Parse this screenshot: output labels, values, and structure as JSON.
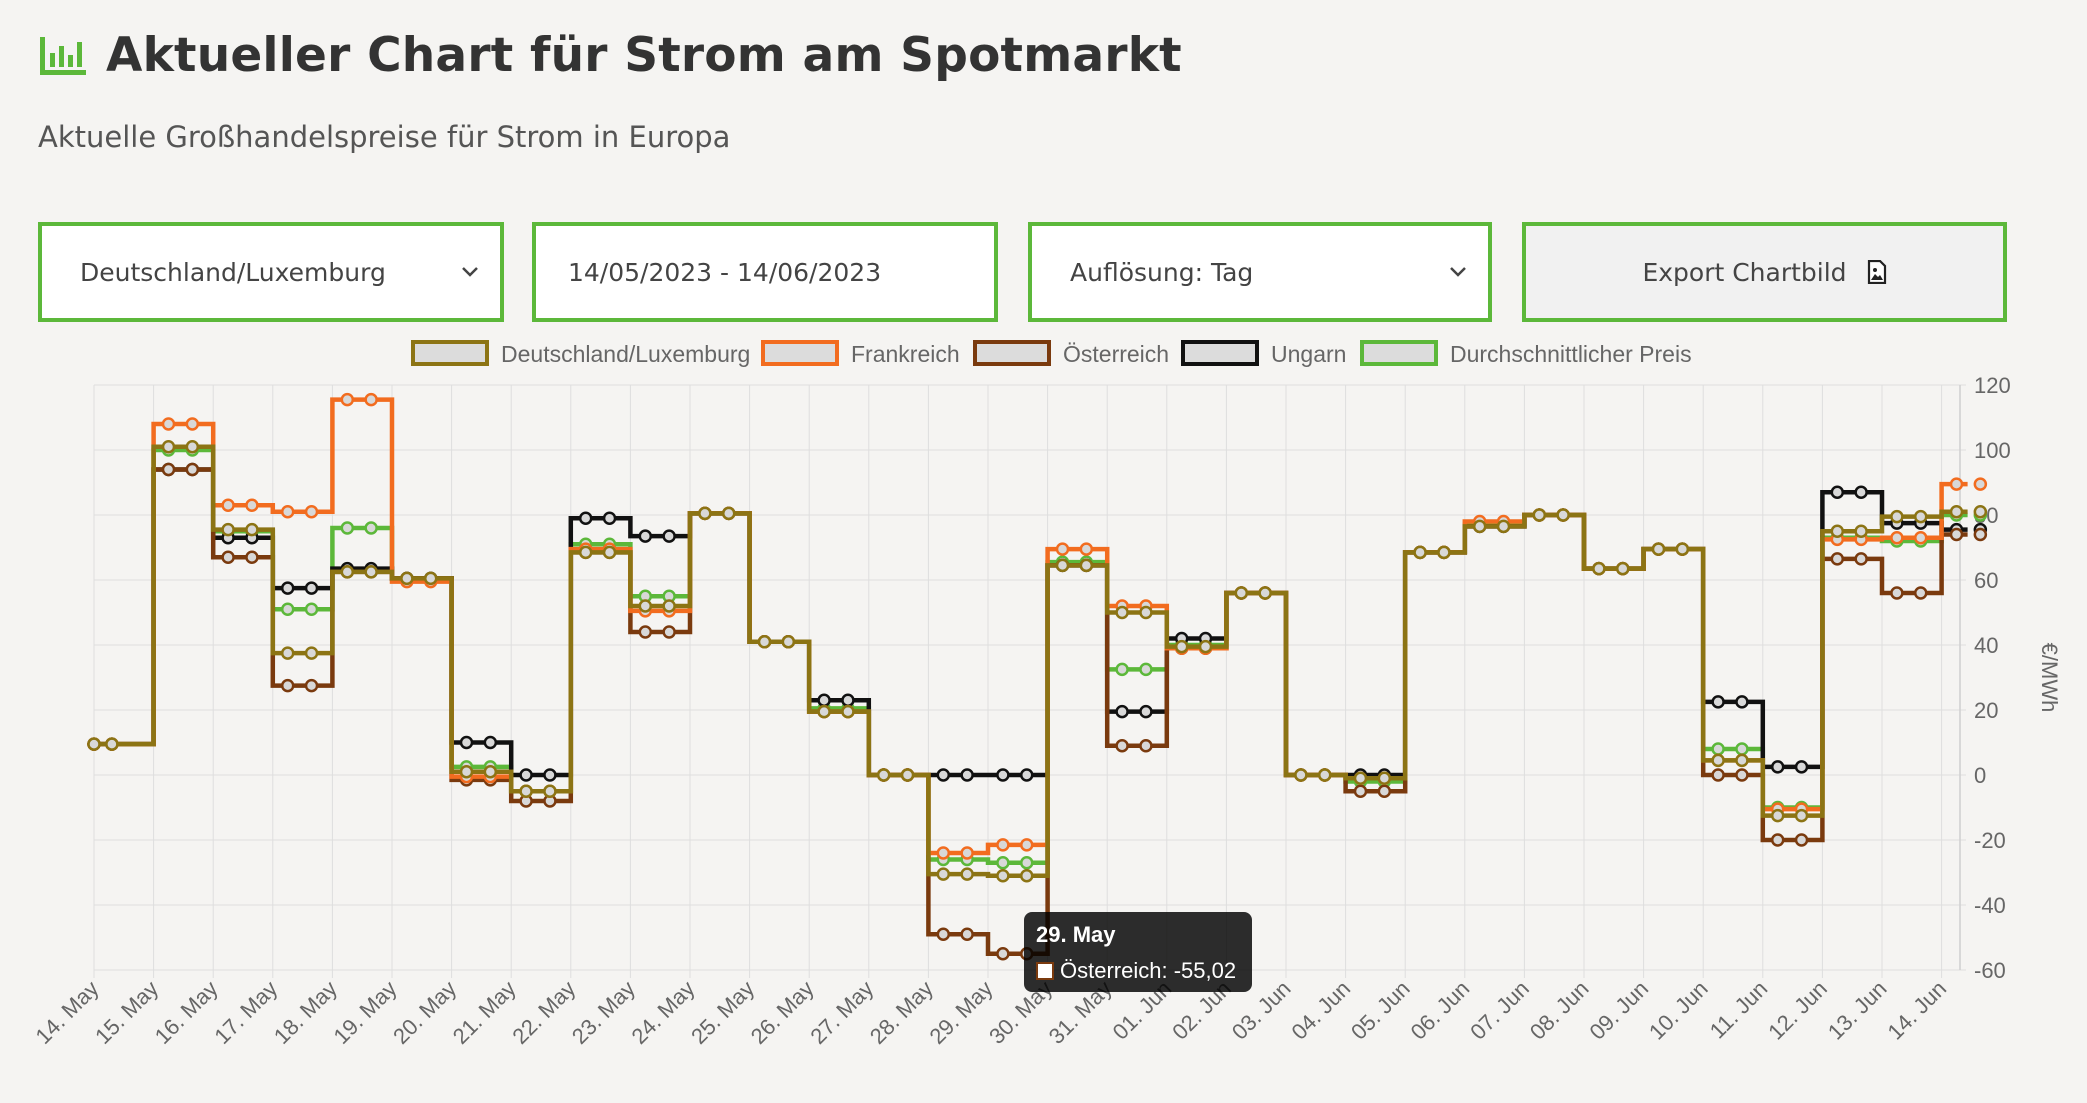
{
  "header": {
    "title": "Aktueller Chart für Strom am Spotmarkt",
    "subtitle": "Aktuelle Großhandelspreise für Strom in Europa",
    "logo_icon": "bar-chart-icon",
    "accent_color": "#5cb83a"
  },
  "controls": {
    "country": "Deutschland/Luxemburg",
    "date_range": "14/05/2023 - 14/06/2023",
    "resolution": "Auflösung: Tag",
    "export_label": "Export Chartbild",
    "export_icon": "image-file-icon"
  },
  "tooltip": {
    "title": "29. May",
    "label": "Österreich: -55,02"
  },
  "chart_data": {
    "type": "line",
    "step": true,
    "xlabel": "",
    "ylabel": "€/MWh",
    "ylim": [
      -60,
      120
    ],
    "yticks": [
      120,
      100,
      80,
      60,
      40,
      20,
      0,
      -20,
      -40,
      -60
    ],
    "y_axis_position": "right",
    "grid": true,
    "legend_position": "top",
    "categories": [
      "14. May",
      "15. May",
      "16. May",
      "17. May",
      "18. May",
      "19. May",
      "20. May",
      "21. May",
      "22. May",
      "23. May",
      "24. May",
      "25. May",
      "26. May",
      "27. May",
      "28. May",
      "29. May",
      "30. May",
      "31. May",
      "01. Jun",
      "02. Jun",
      "03. Jun",
      "04. Jun",
      "05. Jun",
      "06. Jun",
      "07. Jun",
      "08. Jun",
      "09. Jun",
      "10. Jun",
      "11. Jun",
      "12. Jun",
      "13. Jun",
      "14. Jun"
    ],
    "series": [
      {
        "name": "Deutschland/Luxemburg",
        "color": "#8c7414",
        "values": [
          9.5,
          101,
          75.5,
          37.5,
          62.5,
          60.5,
          1,
          -5,
          68.5,
          52,
          80.5,
          41,
          19.5,
          0,
          -30.5,
          -31,
          64.5,
          50,
          39.5,
          56,
          0,
          -1,
          68.5,
          76.5,
          80,
          63.5,
          69.5,
          4.5,
          -12.5,
          75,
          79.5,
          81
        ]
      },
      {
        "name": "Frankreich",
        "color": "#f26c1f",
        "values": [
          9.5,
          108,
          83,
          81,
          115.5,
          59.5,
          -0.5,
          -5,
          69.5,
          50.5,
          80.5,
          41,
          19.5,
          0,
          -24,
          -21.5,
          69.5,
          52,
          39,
          56,
          0,
          -1,
          68.5,
          78,
          80,
          63.5,
          69.5,
          4.5,
          -10.5,
          72.5,
          73,
          89.5
        ]
      },
      {
        "name": "Österreich",
        "color": "#7a3a0e",
        "values": [
          9.5,
          94,
          67,
          27.5,
          62.5,
          60.5,
          -1.5,
          -8,
          68.5,
          44,
          80.5,
          41,
          19.5,
          0,
          -49,
          -55,
          64.5,
          9,
          39,
          56,
          0,
          -5,
          68.5,
          76.5,
          80,
          63.5,
          69.5,
          0,
          -20,
          66.5,
          56,
          74
        ]
      },
      {
        "name": "Ungarn",
        "color": "#111111",
        "values": [
          9.5,
          94,
          73,
          57.5,
          63.5,
          60.5,
          10,
          0,
          79,
          73.5,
          80.5,
          41,
          23,
          0,
          0,
          0,
          64.5,
          19.5,
          42,
          56,
          0,
          0,
          68.5,
          76.5,
          80,
          63.5,
          69.5,
          22.5,
          2.5,
          87,
          77.5,
          75.5
        ]
      },
      {
        "name": "Durchschnittlicher Preis",
        "color": "#5cb83a",
        "values": [
          9.5,
          100,
          75,
          51,
          76,
          60.5,
          2.5,
          -5,
          71,
          55,
          80.5,
          41,
          20.5,
          0,
          -26,
          -27,
          65.5,
          32.5,
          40,
          56,
          0,
          -2,
          68.5,
          77,
          80,
          63.5,
          69.5,
          8,
          -10,
          73,
          72,
          80
        ]
      }
    ]
  }
}
